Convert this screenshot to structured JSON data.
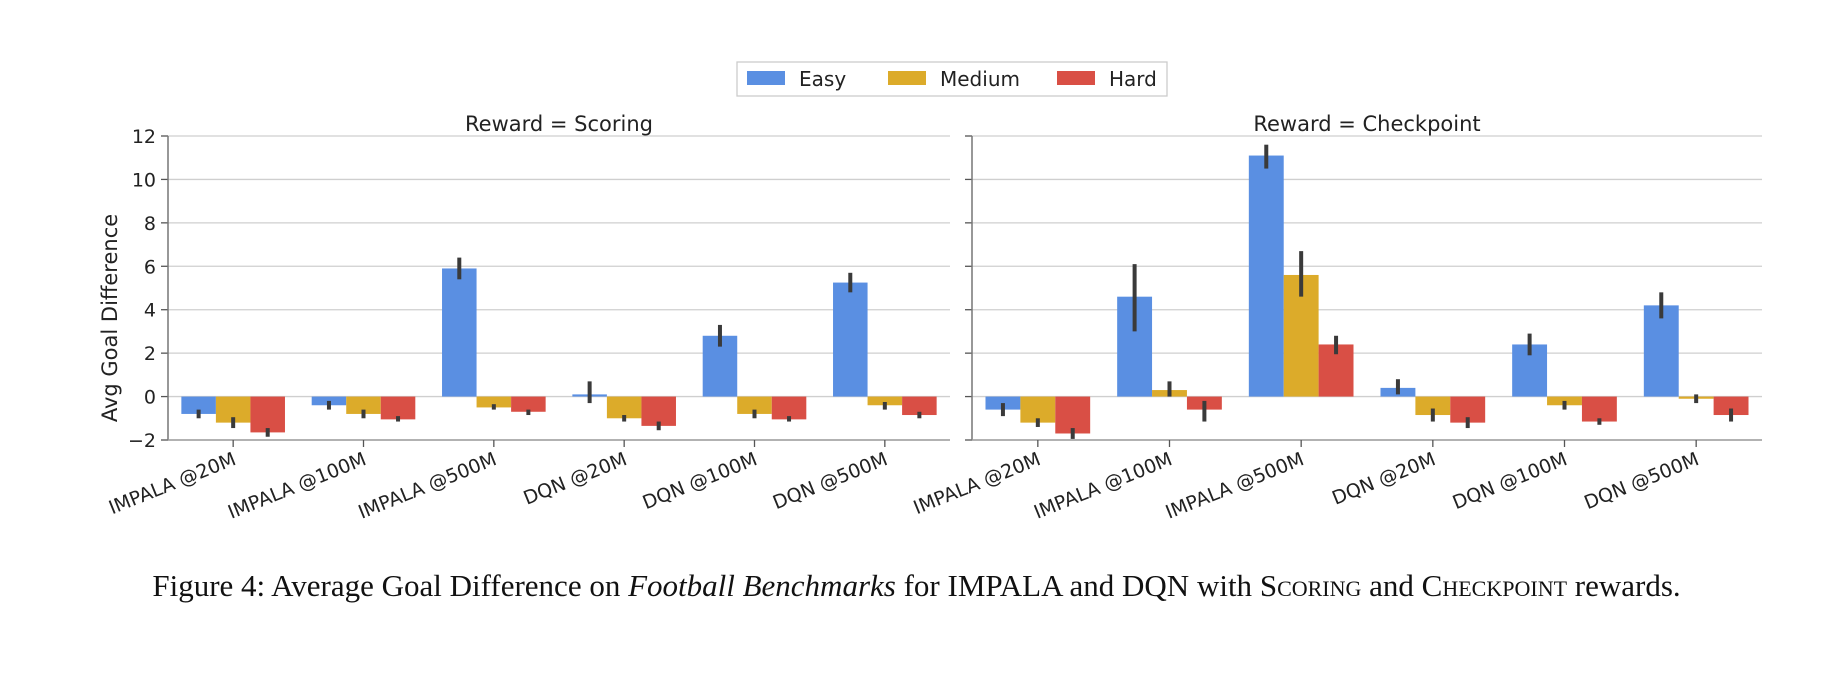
{
  "chart_data": {
    "type": "bar",
    "ylabel": "Avg Goal Difference",
    "ylim": [
      -2,
      12
    ],
    "yticks": [
      -2,
      0,
      2,
      4,
      6,
      8,
      10,
      12
    ],
    "ytick_labels": [
      "−2",
      "0",
      "2",
      "4",
      "6",
      "8",
      "10",
      "12"
    ],
    "categories": [
      "IMPALA @20M",
      "IMPALA @100M",
      "IMPALA @500M",
      "DQN @20M",
      "DQN @100M",
      "DQN @500M"
    ],
    "legend": [
      {
        "name": "Easy",
        "color": "#5a8fe2"
      },
      {
        "name": "Medium",
        "color": "#dcab2a"
      },
      {
        "name": "Hard",
        "color": "#d94f45"
      }
    ],
    "legend_position": "top-center",
    "grid": "horizontal",
    "panels": [
      {
        "title": "Reward = Scoring",
        "series": [
          {
            "name": "Easy",
            "values": [
              -0.8,
              -0.4,
              5.9,
              0.1,
              2.8,
              5.25
            ],
            "err_low": [
              -1.0,
              -0.6,
              5.4,
              -0.3,
              2.3,
              4.8
            ],
            "err_high": [
              -0.6,
              -0.2,
              6.4,
              0.7,
              3.3,
              5.7
            ]
          },
          {
            "name": "Medium",
            "values": [
              -1.2,
              -0.8,
              -0.5,
              -1.0,
              -0.8,
              -0.4
            ],
            "err_low": [
              -1.45,
              -1.0,
              -0.6,
              -1.15,
              -1.0,
              -0.6
            ],
            "err_high": [
              -0.95,
              -0.6,
              -0.35,
              -0.85,
              -0.6,
              -0.25
            ]
          },
          {
            "name": "Hard",
            "values": [
              -1.65,
              -1.05,
              -0.7,
              -1.35,
              -1.05,
              -0.85
            ],
            "err_low": [
              -1.85,
              -1.15,
              -0.85,
              -1.55,
              -1.15,
              -1.0
            ],
            "err_high": [
              -1.45,
              -0.9,
              -0.6,
              -1.15,
              -0.9,
              -0.7
            ]
          }
        ]
      },
      {
        "title": "Reward = Checkpoint",
        "series": [
          {
            "name": "Easy",
            "values": [
              -0.6,
              4.6,
              11.1,
              0.4,
              2.4,
              4.2
            ],
            "err_low": [
              -0.9,
              3.0,
              10.5,
              0.1,
              1.9,
              3.6
            ],
            "err_high": [
              -0.3,
              6.1,
              11.6,
              0.8,
              2.9,
              4.8
            ]
          },
          {
            "name": "Medium",
            "values": [
              -1.2,
              0.3,
              5.6,
              -0.85,
              -0.4,
              -0.1
            ],
            "err_low": [
              -1.4,
              0.0,
              4.6,
              -1.15,
              -0.6,
              -0.3
            ],
            "err_high": [
              -1.0,
              0.7,
              6.7,
              -0.55,
              -0.2,
              0.1
            ]
          },
          {
            "name": "Hard",
            "values": [
              -1.7,
              -0.6,
              2.4,
              -1.2,
              -1.15,
              -0.85
            ],
            "err_low": [
              -1.95,
              -1.15,
              1.95,
              -1.45,
              -1.3,
              -1.15
            ],
            "err_high": [
              -1.45,
              -0.2,
              2.8,
              -0.95,
              -1.0,
              -0.55
            ]
          }
        ]
      }
    ]
  },
  "caption": {
    "prefix": "Figure 4: Average Goal Difference on ",
    "italic": "Football Benchmarks",
    "middle": " for IMPALA and DQN with ",
    "sc1_first": "S",
    "sc1_rest": "coring",
    "and": " and ",
    "sc2_first": "C",
    "sc2_rest": "heckpoint",
    "suffix": " rewards."
  }
}
